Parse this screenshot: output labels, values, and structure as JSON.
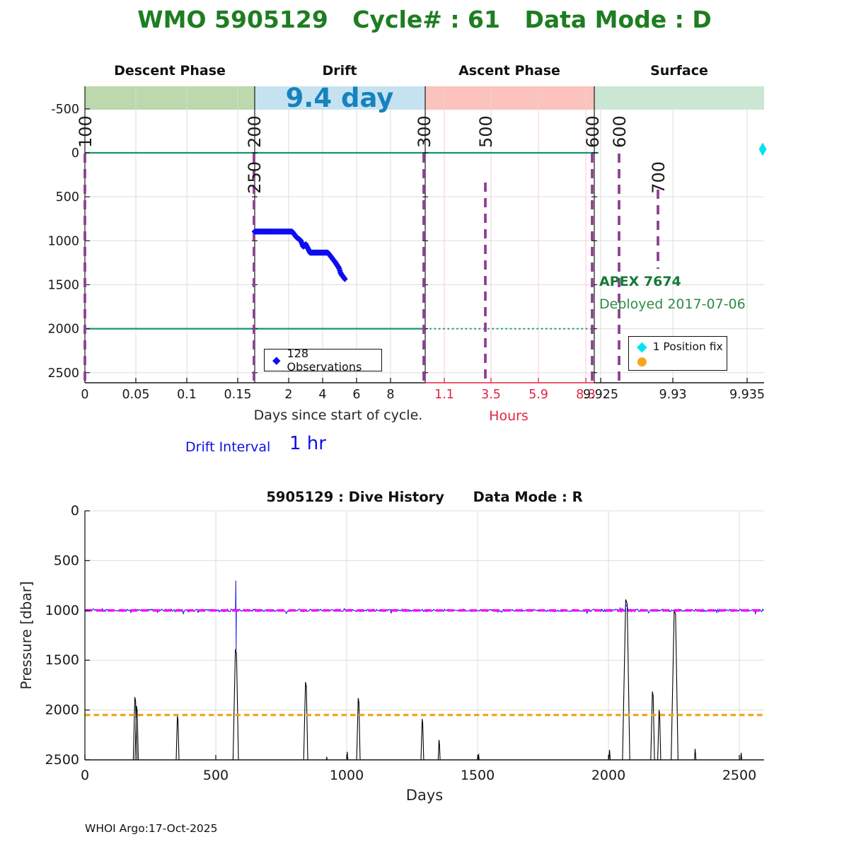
{
  "header": {
    "title": "WMO 5905129   Cycle# : 61   Data Mode : D"
  },
  "footer": {
    "credit": "WHOI Argo:17-Oct-2025"
  },
  "colors": {
    "title_green": "#1E7D21",
    "annotation_green": "#157A33",
    "duration_blue": "#1583BE",
    "descent_band": "#BCD8AC",
    "drift_band": "#C6E2F0",
    "ascent_band": "#FBC3BC",
    "surface_band": "#CBE7D3",
    "message_purple": "#8C4191",
    "reference_green": "#14966F",
    "observation_blue": "#0D0DF0",
    "position_fix_cyan": "#00E4F0",
    "park_orange": "#F6A51F",
    "profile_magenta": "#FB00FB",
    "hours_red": "#E32345",
    "grid_gray": "#DCDCDC",
    "grid_pink": "#F7CDCB",
    "axis_black": "#1A1A1A"
  },
  "chart_data": [
    {
      "type": "line",
      "id": "cycle_detail",
      "title": "WMO 5905129   Cycle# : 61   Data Mode : D",
      "ylabel": "",
      "ylim": [
        -750,
        2600
      ],
      "grid": true,
      "legend_position": "inside",
      "phases": [
        {
          "label": "Descent Phase",
          "band_color": "#BCD8AC",
          "x0": 120,
          "x1": 360,
          "annotation": ""
        },
        {
          "label": "Drift",
          "band_color": "#C6E2F0",
          "x0": 360,
          "x1": 601,
          "annotation": "9.4 day"
        },
        {
          "label": "Ascent Phase",
          "band_color": "#FBC3BC",
          "x0": 601,
          "x1": 840,
          "annotation": ""
        },
        {
          "label": "Surface",
          "band_color": "#CBE7D3",
          "x0": 840,
          "x1": 1080,
          "annotation": ""
        }
      ],
      "xlabel_days": "Days since start of cycle.",
      "xlabel_hours": "Hours",
      "drift_interval_label": "Drift Interval",
      "drift_interval_value": "1 hr",
      "y_ticks": [
        -500,
        0,
        500,
        1000,
        1500,
        2000,
        2500
      ],
      "x_ticks": [
        {
          "x": 120,
          "t": "0",
          "c": "k"
        },
        {
          "x": 192,
          "t": "0.05",
          "c": "k"
        },
        {
          "x": 264,
          "t": "0.1",
          "c": "k"
        },
        {
          "x": 336,
          "t": "0.15",
          "c": "k"
        },
        {
          "x": 408,
          "t": "2",
          "c": "k"
        },
        {
          "x": 456,
          "t": "4",
          "c": "k"
        },
        {
          "x": 504,
          "t": "6",
          "c": "k"
        },
        {
          "x": 552,
          "t": "8",
          "c": "k"
        },
        {
          "x": 628,
          "t": "1.1",
          "c": "r"
        },
        {
          "x": 694,
          "t": "3.5",
          "c": "r"
        },
        {
          "x": 761,
          "t": "5.9",
          "c": "r"
        },
        {
          "x": 828,
          "t": "8.3",
          "c": "r"
        },
        {
          "x": 849,
          "t": "9.925",
          "c": "k"
        },
        {
          "x": 951,
          "t": "9.93",
          "c": "k"
        },
        {
          "x": 1056,
          "t": "9.935",
          "c": "k"
        }
      ],
      "grid_x": {
        "descent": [
          192,
          264,
          336
        ],
        "drift": [
          408,
          456,
          504,
          552
        ],
        "ascent": [
          628,
          694,
          761,
          828
        ],
        "surface": [
          849,
          951,
          1056
        ]
      },
      "reference_lines": {
        "surface_dbar": 0,
        "park_dbar": 2000
      },
      "message_lines": [
        {
          "x": 120,
          "y1": 217,
          "y2": 541,
          "labels": [
            {
              "text": "100",
              "side": "above"
            }
          ]
        },
        {
          "x": 359,
          "y1": 217,
          "y2": 541,
          "labels": [
            {
              "text": "200",
              "side": "above"
            },
            {
              "text": "250",
              "side": "below"
            }
          ]
        },
        {
          "x": 599,
          "y1": 217,
          "y2": 541,
          "labels": [
            {
              "text": "300",
              "side": "above"
            }
          ]
        },
        {
          "x": 686,
          "y1": 258,
          "y2": 541,
          "labels": [
            {
              "text": "500",
              "side": "above"
            }
          ]
        },
        {
          "x": 837,
          "y1": 217,
          "y2": 541,
          "labels": [
            {
              "text": "600",
              "side": "above"
            }
          ]
        },
        {
          "x": 875,
          "y1": 217,
          "y2": 541,
          "labels": [
            {
              "text": "600",
              "side": "above"
            }
          ]
        },
        {
          "x": 930,
          "y1": 268,
          "y2": 380,
          "labels": [
            {
              "text": "700",
              "side": "below"
            }
          ]
        }
      ],
      "observations": {
        "count": 128,
        "legend": "128 Observations",
        "interval_hours": 1,
        "profile_day_dbar": [
          [
            0,
            895
          ],
          [
            2.2,
            895
          ],
          [
            2.45,
            960
          ],
          [
            2.7,
            995
          ],
          [
            2.85,
            1070
          ],
          [
            3.0,
            1040
          ],
          [
            3.25,
            1135
          ],
          [
            4.3,
            1135
          ],
          [
            4.75,
            1250
          ],
          [
            4.95,
            1310
          ],
          [
            5.05,
            1370
          ],
          [
            5.29,
            1435
          ]
        ]
      },
      "position_fix": {
        "legend": "1 Position fix",
        "x": 1078,
        "dbar": 0
      },
      "annotations": {
        "float_type": "APEX 7674",
        "deployed": "Deployed 2017-07-06"
      }
    },
    {
      "type": "line",
      "id": "dive_history",
      "title": "5905129 : Dive History      Data Mode : R",
      "xlabel": "Days",
      "ylabel": "Pressure [dbar]",
      "xlim": [
        0,
        2595
      ],
      "ylim": [
        0,
        2500
      ],
      "grid": true,
      "x_ticks": [
        0,
        500,
        1000,
        1500,
        2000,
        2500
      ],
      "y_ticks": [
        0,
        500,
        1000,
        1500,
        2000,
        2500
      ],
      "park_line": {
        "baseline_dbar": 1000,
        "noise_dbar": 13,
        "excursion_day_dbar": [
          [
            575.5,
            1000
          ],
          [
            576.5,
            700
          ],
          [
            577.2,
            1005
          ],
          [
            577.9,
            1400
          ],
          [
            578.6,
            1000
          ]
        ],
        "bumps_day_dbar_halfwidth": [
          [
            2068,
            930,
            5
          ],
          [
            2255,
            985,
            4
          ]
        ]
      },
      "profile_ref_line_dbar": 1000,
      "deep_ref_line_dbar": 2050,
      "deep_spikes_day_peakdbar": [
        [
          193,
          1870
        ],
        [
          199,
          1960
        ],
        [
          355,
          2060
        ],
        [
          578,
          1390
        ],
        [
          845,
          1720
        ],
        [
          925,
          2470
        ],
        [
          1003,
          2420
        ],
        [
          1046,
          1880
        ],
        [
          1290,
          2090
        ],
        [
          1354,
          2300
        ],
        [
          1505,
          2440
        ],
        [
          2005,
          2400
        ],
        [
          2070,
          890
        ],
        [
          2170,
          1815
        ],
        [
          2195,
          2000
        ],
        [
          2255,
          1000
        ],
        [
          2332,
          2390
        ],
        [
          2508,
          2430
        ]
      ]
    }
  ]
}
